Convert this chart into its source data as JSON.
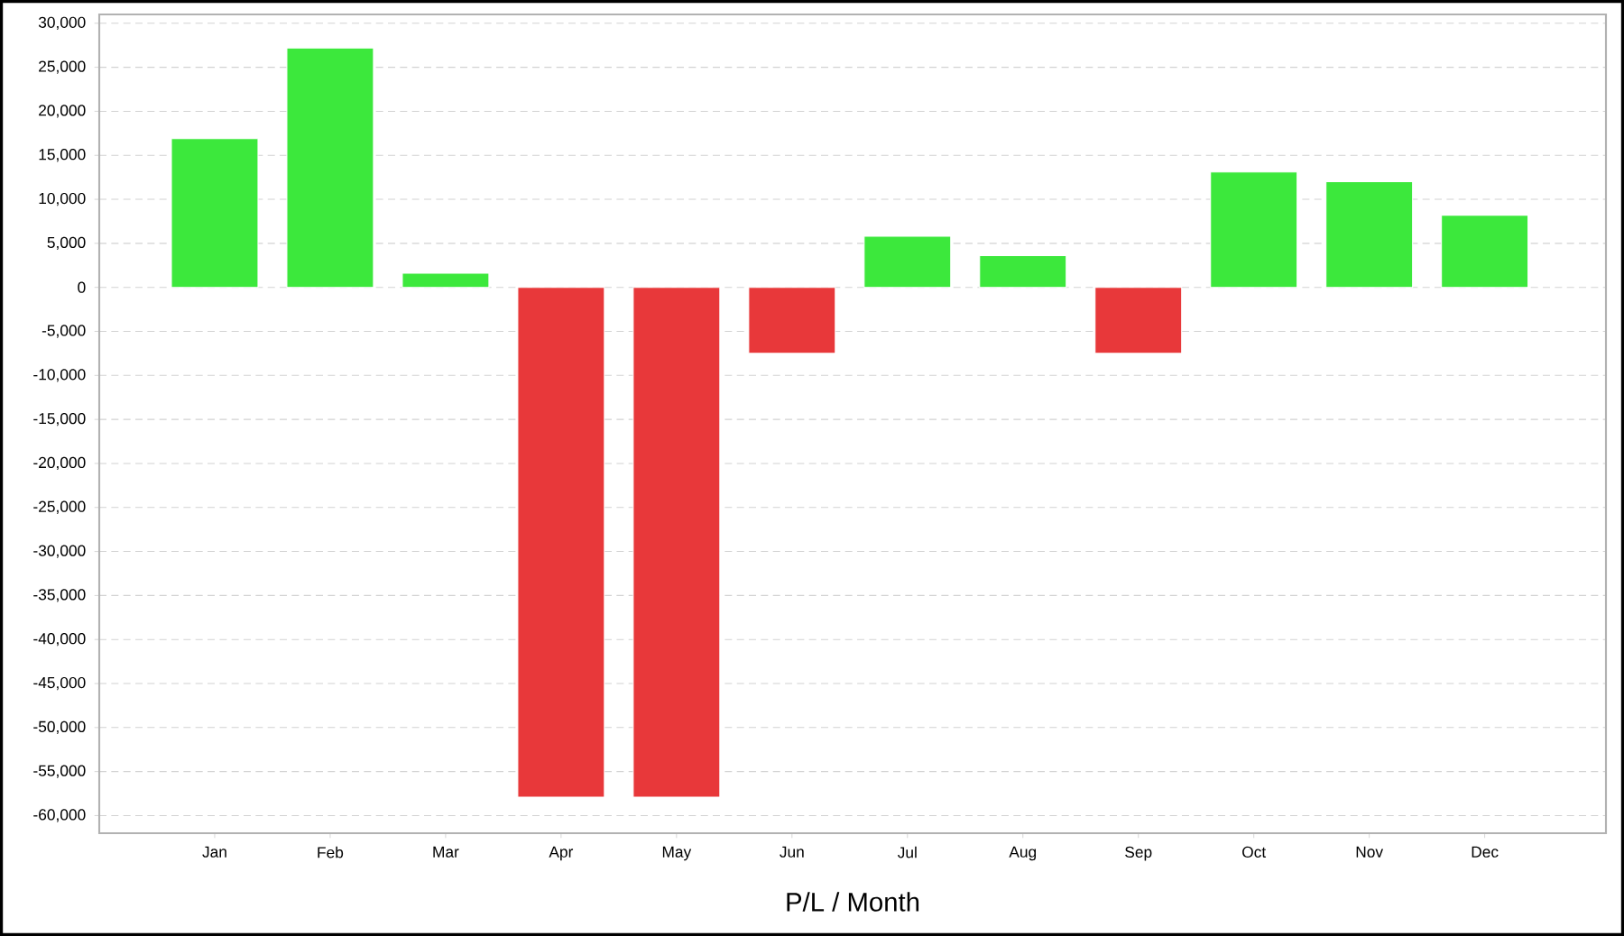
{
  "chart_data": {
    "type": "bar",
    "xlabel": "P/L / Month",
    "categories": [
      "Jan",
      "Feb",
      "Mar",
      "Apr",
      "May",
      "Jun",
      "Jul",
      "Aug",
      "Sep",
      "Oct",
      "Nov",
      "Dec"
    ],
    "values": [
      16900,
      27200,
      1600,
      -57900,
      -57900,
      -7500,
      5800,
      3600,
      -7500,
      13100,
      12000,
      8200
    ],
    "colors": [
      "#3ce83c",
      "#3ce83c",
      "#3ce83c",
      "#e8383a",
      "#e8383a",
      "#e8383a",
      "#3ce83c",
      "#3ce83c",
      "#e8383a",
      "#3ce83c",
      "#3ce83c",
      "#3ce83c"
    ],
    "ylim": [
      -62000,
      31000
    ],
    "yticks": [
      {
        "value": 30000,
        "label": "30,000"
      },
      {
        "value": 25000,
        "label": "25,000"
      },
      {
        "value": 20000,
        "label": "20,000"
      },
      {
        "value": 15000,
        "label": "15,000"
      },
      {
        "value": 10000,
        "label": "10,000"
      },
      {
        "value": 5000,
        "label": "5,000"
      },
      0,
      {
        "value": -5000,
        "label": "-5,000"
      },
      {
        "value": -10000,
        "label": "-10,000"
      },
      {
        "value": -15000,
        "label": "-15,000"
      },
      {
        "value": -20000,
        "label": "-20,000"
      },
      {
        "value": -25000,
        "label": "-25,000"
      },
      {
        "value": -30000,
        "label": "-30,000"
      },
      {
        "value": -35000,
        "label": "-35,000"
      },
      {
        "value": -40000,
        "label": "-40,000"
      },
      {
        "value": -45000,
        "label": "-45,000"
      },
      {
        "value": -50000,
        "label": "-50,000"
      },
      {
        "value": -55000,
        "label": "-55,000"
      },
      {
        "value": -60000,
        "label": "-60,000"
      }
    ],
    "grid": "y"
  }
}
